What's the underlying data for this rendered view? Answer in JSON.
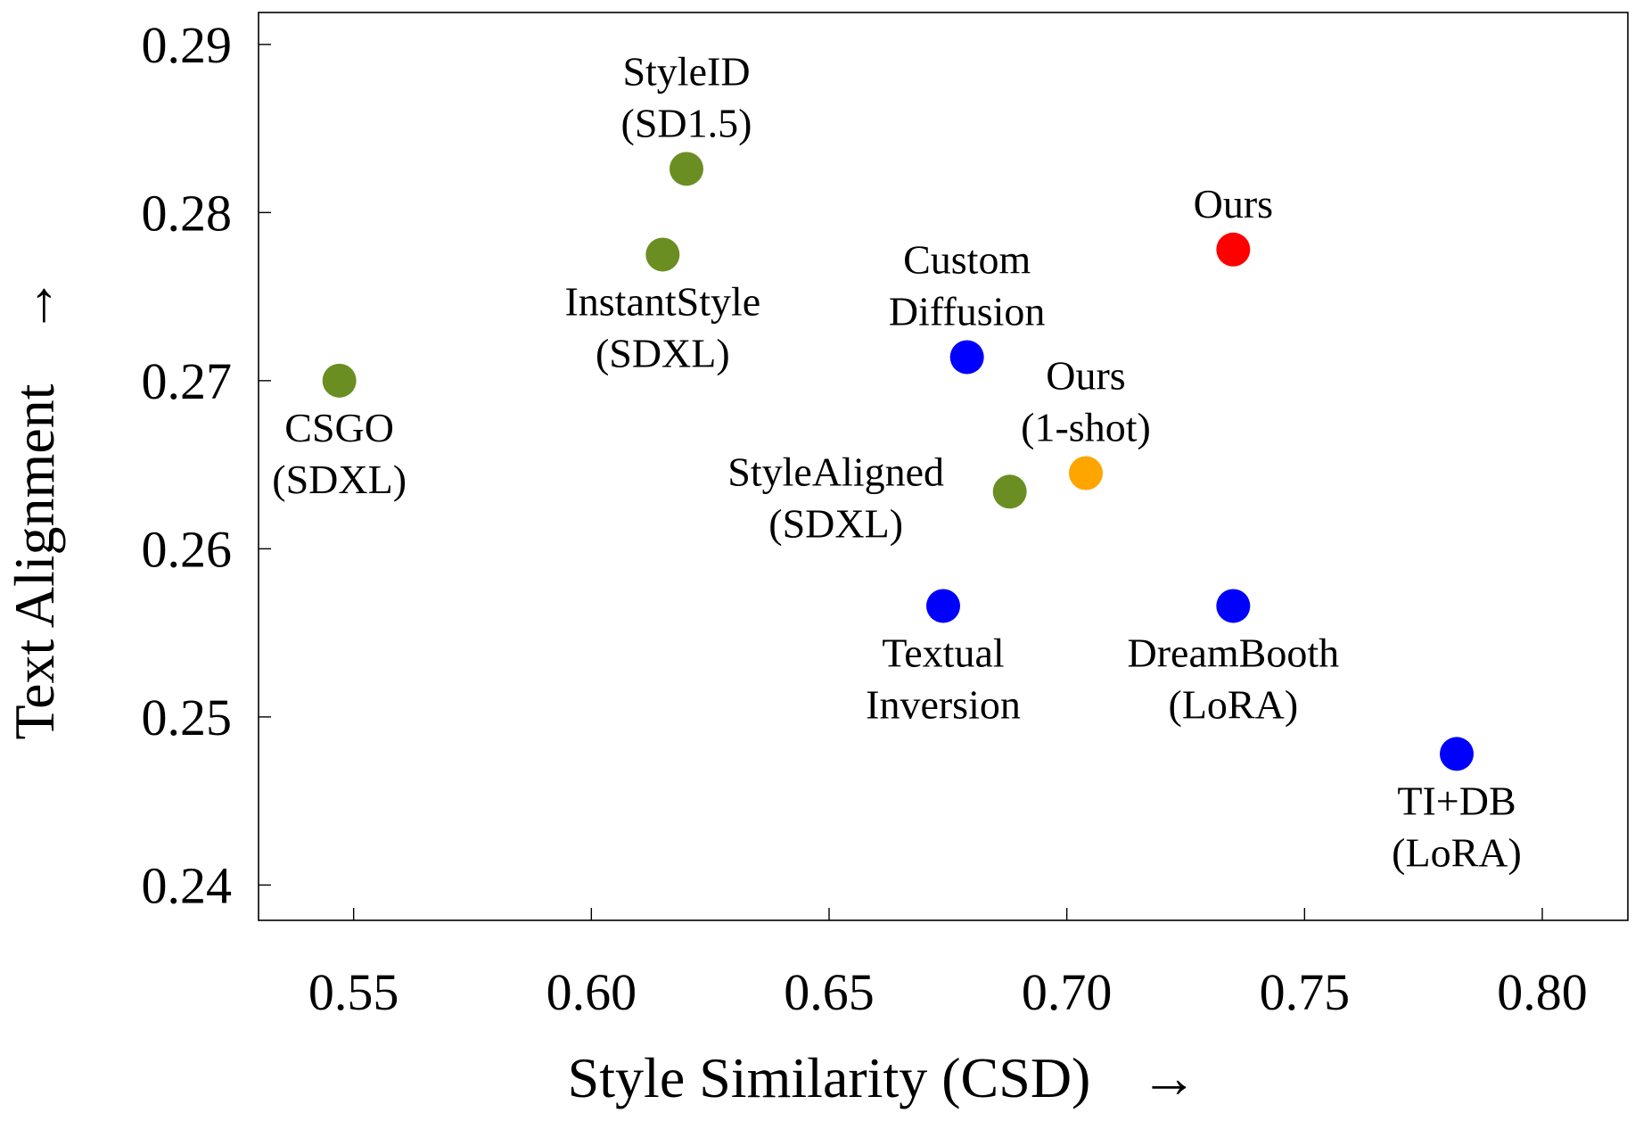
{
  "chart_data": {
    "type": "scatter",
    "title": "",
    "xlabel": "Style Similarity (CSD)",
    "xlabel_arrow": "→",
    "ylabel": "Text Alignment",
    "ylabel_arrow": "→",
    "xlim": [
      0.53,
      0.818
    ],
    "ylim": [
      0.2379,
      0.2919
    ],
    "xticks": [
      0.55,
      0.6,
      0.65,
      0.7,
      0.75,
      0.8
    ],
    "xtick_labels": [
      "0.55",
      "0.60",
      "0.65",
      "0.70",
      "0.75",
      "0.80"
    ],
    "yticks": [
      0.24,
      0.25,
      0.26,
      0.27,
      0.28,
      0.29
    ],
    "ytick_labels": [
      "0.24",
      "0.25",
      "0.26",
      "0.27",
      "0.28",
      "0.29"
    ],
    "grid": false,
    "legend": "none",
    "colors": {
      "style_methods": "#6b8e23",
      "finetune_methods": "#0000ff",
      "ours": "#ff0000",
      "ours_1shot": "#ffa500"
    },
    "points": [
      {
        "id": "styleid",
        "lines": [
          "StyleID",
          "(SD1.5)"
        ],
        "x": 0.62,
        "y": 0.2826,
        "color": "#6b8e23",
        "label_pos": "above"
      },
      {
        "id": "instantstyle",
        "lines": [
          "InstantStyle",
          "(SDXL)"
        ],
        "x": 0.615,
        "y": 0.2775,
        "color": "#6b8e23",
        "label_pos": "below"
      },
      {
        "id": "csgo",
        "lines": [
          "CSGO",
          "(SDXL)"
        ],
        "x": 0.547,
        "y": 0.27,
        "color": "#6b8e23",
        "label_pos": "below"
      },
      {
        "id": "stylealigned",
        "lines": [
          "StyleAligned",
          "(SDXL)"
        ],
        "x": 0.688,
        "y": 0.2634,
        "color": "#6b8e23",
        "label_pos": "left"
      },
      {
        "id": "customdiffusion",
        "lines": [
          "Custom",
          "Diffusion"
        ],
        "x": 0.679,
        "y": 0.2714,
        "color": "#0000ff",
        "label_pos": "above"
      },
      {
        "id": "textualinversion",
        "lines": [
          "Textual",
          "Inversion"
        ],
        "x": 0.674,
        "y": 0.2566,
        "color": "#0000ff",
        "label_pos": "below"
      },
      {
        "id": "dreambooth",
        "lines": [
          "DreamBooth",
          "(LoRA)"
        ],
        "x": 0.735,
        "y": 0.2566,
        "color": "#0000ff",
        "label_pos": "below"
      },
      {
        "id": "tidb",
        "lines": [
          "TI+DB",
          "(LoRA)"
        ],
        "x": 0.782,
        "y": 0.2478,
        "color": "#0000ff",
        "label_pos": "below"
      },
      {
        "id": "ours",
        "lines": [
          "Ours"
        ],
        "x": 0.735,
        "y": 0.2778,
        "color": "#ff0000",
        "label_pos": "above"
      },
      {
        "id": "ours1shot",
        "lines": [
          "Ours",
          "(1-shot)"
        ],
        "x": 0.704,
        "y": 0.2645,
        "color": "#ffa500",
        "label_pos": "above"
      }
    ]
  }
}
